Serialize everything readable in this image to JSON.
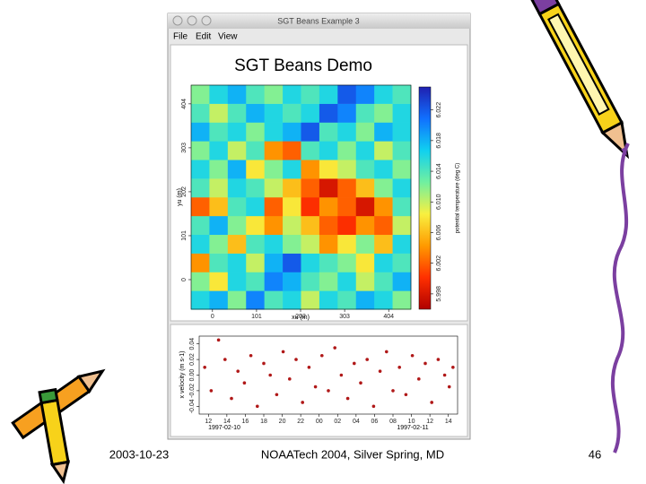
{
  "window": {
    "title": "SGT Beans Example 3",
    "menu": [
      "File",
      "Edit",
      "View"
    ]
  },
  "footer": {
    "date": "2003-10-23",
    "event": "NOAATech 2004, Silver Spring, MD",
    "page": "46"
  },
  "chart_data": [
    {
      "type": "heatmap",
      "title": "SGT Beans Demo",
      "x_label": "xu (m)",
      "y_label": "yu (m)",
      "colorbar_label": "potential temperature (deg C)",
      "xlim": [
        -49,
        455
      ],
      "ylim": [
        -68,
        447
      ],
      "xticks": [
        0,
        101,
        202,
        303,
        404
      ],
      "yticks": [
        0,
        101,
        202,
        303,
        404
      ],
      "clim": [
        5.996,
        6.025
      ],
      "cticks": [
        5.998,
        6.002,
        6.006,
        {
          "value": 6.01,
          "label": "6.010"
        },
        6.014,
        6.018,
        6.022
      ],
      "colormap": [
        "#b00000",
        "#ff3000",
        "#ff9a00",
        "#f8f040",
        "#70f0a0",
        "#10d0f0",
        "#1070ff",
        "#2020b0"
      ],
      "x": [
        -28,
        14,
        56,
        98,
        140,
        182,
        224,
        266,
        308,
        350,
        392,
        434
      ],
      "y": [
        -47,
        -4,
        39,
        82,
        125,
        168,
        211,
        254,
        297,
        340,
        383,
        426
      ],
      "values": [
        [
          6.016,
          6.018,
          6.012,
          6.02,
          6.014,
          6.016,
          6.01,
          6.016,
          6.014,
          6.018,
          6.016,
          6.012
        ],
        [
          6.012,
          6.008,
          6.016,
          6.014,
          6.02,
          6.018,
          6.014,
          6.012,
          6.016,
          6.01,
          6.014,
          6.018
        ],
        [
          6.004,
          6.014,
          6.016,
          6.01,
          6.018,
          6.022,
          6.016,
          6.014,
          6.012,
          6.008,
          6.016,
          6.014
        ],
        [
          6.016,
          6.012,
          6.006,
          6.014,
          6.016,
          6.012,
          6.01,
          6.004,
          6.008,
          6.012,
          6.006,
          6.016
        ],
        [
          6.014,
          6.018,
          6.012,
          6.008,
          6.004,
          6.01,
          6.006,
          6.002,
          6.0,
          6.004,
          6.002,
          6.01
        ],
        [
          6.002,
          6.006,
          6.014,
          6.016,
          6.002,
          6.008,
          6.0,
          6.004,
          6.002,
          5.998,
          6.004,
          6.014
        ],
        [
          6.014,
          6.01,
          6.016,
          6.014,
          6.01,
          6.006,
          6.002,
          5.998,
          6.002,
          6.006,
          6.012,
          6.016
        ],
        [
          6.016,
          6.012,
          6.018,
          6.008,
          6.012,
          6.016,
          6.004,
          6.008,
          6.01,
          6.014,
          6.016,
          6.012
        ],
        [
          6.012,
          6.016,
          6.01,
          6.014,
          6.004,
          6.002,
          6.014,
          6.016,
          6.012,
          6.016,
          6.01,
          6.014
        ],
        [
          6.018,
          6.014,
          6.016,
          6.012,
          6.016,
          6.018,
          6.022,
          6.014,
          6.016,
          6.012,
          6.018,
          6.016
        ],
        [
          6.014,
          6.01,
          6.014,
          6.018,
          6.016,
          6.014,
          6.016,
          6.022,
          6.02,
          6.014,
          6.012,
          6.016
        ],
        [
          6.012,
          6.016,
          6.018,
          6.014,
          6.012,
          6.016,
          6.014,
          6.016,
          6.022,
          6.02,
          6.016,
          6.014
        ]
      ]
    },
    {
      "type": "scatter",
      "y_label": "x velocity (m s-1)",
      "color": "#b01818",
      "annotations": [
        "1997-02-10",
        "1997-02-11"
      ],
      "xlim": [
        11,
        39
      ],
      "ylim": [
        -0.05,
        0.05
      ],
      "xticks": [
        12,
        14,
        16,
        18,
        20,
        22,
        {
          "value": 24,
          "label": "00"
        },
        {
          "value": 26,
          "label": "02"
        },
        {
          "value": 28,
          "label": "04"
        },
        {
          "value": 30,
          "label": "06"
        },
        {
          "value": 32,
          "label": "08"
        },
        {
          "value": 34,
          "label": "10"
        },
        {
          "value": 36,
          "label": "12"
        },
        {
          "value": 38,
          "label": "14"
        }
      ],
      "yticks": [
        {
          "value": -0.04,
          "label": "-0.04"
        },
        {
          "value": -0.02,
          "label": "-0.02"
        },
        {
          "value": 0,
          "label": "0.00"
        },
        {
          "value": 0.02,
          "label": "0.02"
        },
        {
          "value": 0.04,
          "label": "0.04"
        }
      ],
      "x": [
        11.6,
        12.3,
        13.1,
        13.8,
        14.5,
        15.2,
        15.9,
        16.6,
        17.3,
        18.0,
        18.7,
        19.4,
        20.1,
        20.8,
        21.5,
        22.2,
        22.9,
        23.6,
        24.3,
        25.0,
        25.7,
        26.4,
        27.1,
        27.8,
        28.5,
        29.2,
        29.9,
        30.6,
        31.3,
        32.0,
        32.7,
        33.4,
        34.1,
        34.8,
        35.5,
        36.2,
        36.9,
        37.6,
        38.1,
        38.5
      ],
      "values": [
        0.01,
        -0.02,
        0.045,
        0.02,
        -0.03,
        0.005,
        -0.01,
        0.025,
        -0.04,
        0.015,
        0,
        -0.025,
        0.03,
        -0.005,
        0.02,
        -0.035,
        0.01,
        -0.015,
        0.025,
        -0.02,
        0.035,
        0,
        -0.03,
        0.015,
        -0.01,
        0.02,
        -0.04,
        0.005,
        0.03,
        -0.02,
        0.01,
        -0.025,
        0.025,
        -0.005,
        0.015,
        -0.035,
        0.02,
        0,
        -0.015,
        0.01
      ]
    }
  ]
}
